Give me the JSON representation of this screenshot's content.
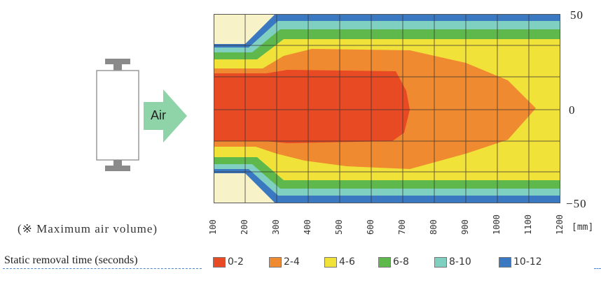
{
  "device": {
    "arrow_label": "Air"
  },
  "axis": {
    "right_labels": [
      "50",
      "0",
      "−50"
    ],
    "x_ticks": [
      "100",
      "200",
      "300",
      "400",
      "500",
      "600",
      "700",
      "800",
      "900",
      "1000",
      "1100",
      "1200"
    ],
    "x_unit": "[mm]"
  },
  "note": "(※ Maximum air volume)",
  "legend": {
    "title": "Static removal time (seconds)",
    "items": [
      {
        "label": "0-2",
        "color": "#e84a24"
      },
      {
        "label": "2-4",
        "color": "#f08a30"
      },
      {
        "label": "4-6",
        "color": "#f1e23a"
      },
      {
        "label": "6-8",
        "color": "#5fb84c"
      },
      {
        "label": "8-10",
        "color": "#7fd0c0"
      },
      {
        "label": "10-12",
        "color": "#3a78c2"
      }
    ]
  }
}
